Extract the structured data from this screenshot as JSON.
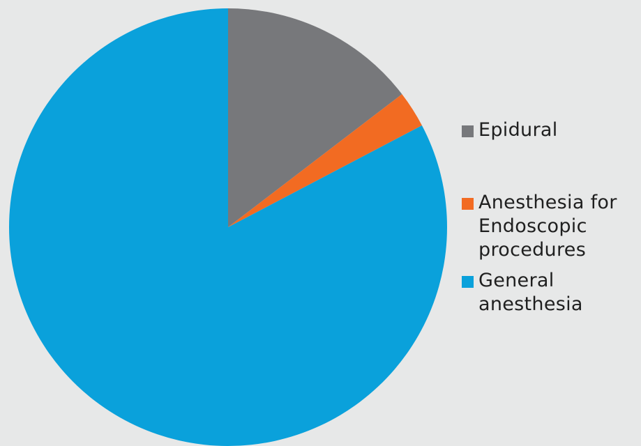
{
  "chart_data": {
    "type": "pie",
    "title": "",
    "slices": [
      {
        "label": "Epidural",
        "value": 14.6,
        "color": "#77787b"
      },
      {
        "label": "Anesthesia for Endoscopic procedures",
        "value": 2.7,
        "color": "#f26b22"
      },
      {
        "label": "General anesthesia",
        "value": 82.7,
        "color": "#0aa1db"
      }
    ],
    "legend_position": "right"
  },
  "legend": {
    "items": [
      {
        "label": "Epidural",
        "color": "#77787b"
      },
      {
        "label": "Anesthesia for\nEndoscopic\nprocedures",
        "color": "#f26b22"
      },
      {
        "label": "General\nanesthesia",
        "color": "#0aa1db"
      }
    ]
  }
}
